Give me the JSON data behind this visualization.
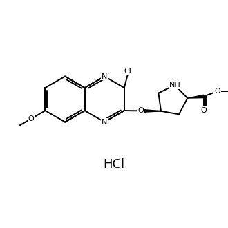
{
  "bg": "#ffffff",
  "lc": "#000000",
  "lw": 1.4,
  "figsize": [
    3.3,
    3.3
  ],
  "dpi": 100,
  "hcl_text": "HCl",
  "hcl_x": 5.0,
  "hcl_y": 2.8,
  "hcl_fs": 13,
  "label_fs": 8.0,
  "xlim": [
    0,
    10
  ],
  "ylim": [
    0,
    10
  ]
}
